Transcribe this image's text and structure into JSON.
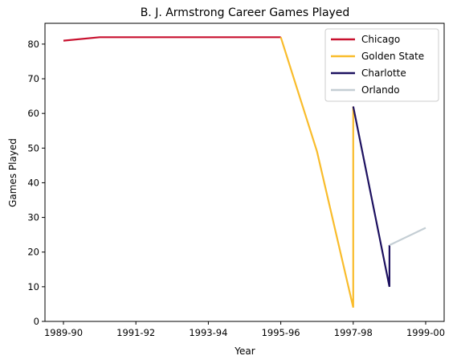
{
  "chart_data": {
    "type": "line",
    "title": "B. J. Armstrong Career Games Played",
    "xlabel": "Year",
    "ylabel": "Games Played",
    "ylim": [
      0,
      86
    ],
    "yticks": [
      0,
      10,
      20,
      30,
      40,
      50,
      60,
      70,
      80
    ],
    "xticks": [
      "1989-90",
      "1991-92",
      "1993-94",
      "1995-96",
      "1997-98",
      "1999-00"
    ],
    "seasons": [
      "1989-90",
      "1990-91",
      "1991-92",
      "1992-93",
      "1993-94",
      "1994-95",
      "1995-96",
      "1996-97",
      "1997-98",
      "1998-99",
      "1999-00"
    ],
    "legend_position": "upper-right",
    "grid": false,
    "series": [
      {
        "name": "Chicago",
        "color": "#c8102e",
        "points": [
          [
            "1989-90",
            81
          ],
          [
            "1990-91",
            82
          ],
          [
            "1991-92",
            82
          ],
          [
            "1992-93",
            82
          ],
          [
            "1993-94",
            82
          ],
          [
            "1994-95",
            82
          ],
          [
            "1995-96",
            82
          ]
        ]
      },
      {
        "name": "Golden State",
        "color": "#f9bc2b",
        "points": [
          [
            "1995-96",
            82
          ],
          [
            "1996-97",
            49
          ],
          [
            "1997-98",
            4
          ],
          [
            "1997-98",
            62
          ]
        ]
      },
      {
        "name": "Charlotte",
        "color": "#1d1160",
        "points": [
          [
            "1997-98",
            62
          ],
          [
            "1998-99",
            10
          ],
          [
            "1998-99",
            22
          ]
        ]
      },
      {
        "name": "Orlando",
        "color": "#c4ced4",
        "points": [
          [
            "1998-99",
            22
          ],
          [
            "1999-00",
            27
          ]
        ]
      }
    ]
  }
}
